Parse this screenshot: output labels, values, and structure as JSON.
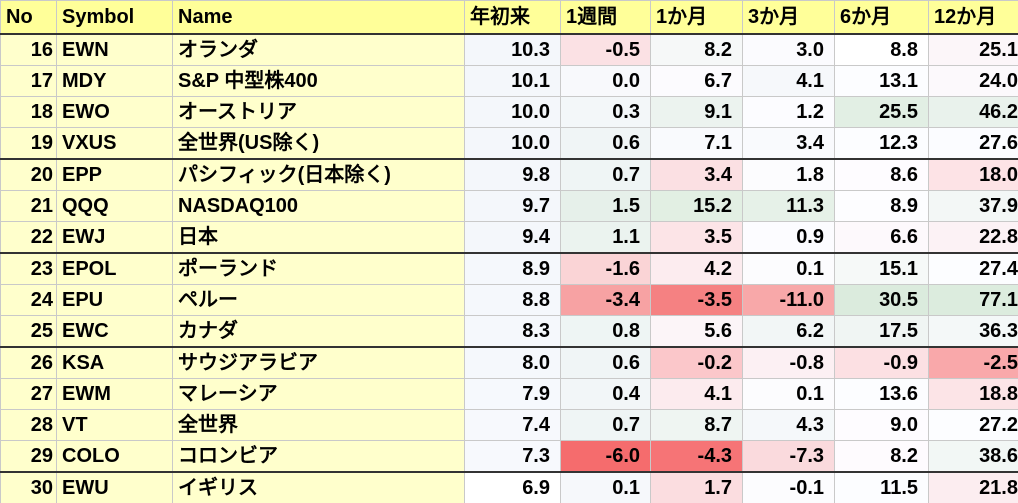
{
  "chart_data": {
    "type": "table",
    "columns": [
      "No",
      "Symbol",
      "Name",
      "年初来",
      "1週間",
      "1か月",
      "3か月",
      "6か月",
      "12か月"
    ],
    "rows": [
      {
        "no": "16",
        "symbol": "EWN",
        "name": "オランダ",
        "values": [
          "10.3",
          "-0.5",
          "8.2",
          "3.0",
          "8.8",
          "25.1"
        ],
        "colors": [
          "#f4f7fb",
          "#fbe1e4",
          "#f6f8f8",
          "#fbfbfe",
          "#ffffff",
          "#fcf6f9"
        ]
      },
      {
        "no": "17",
        "symbol": "MDY",
        "name": "S&P 中型株400",
        "values": [
          "10.1",
          "0.0",
          "6.7",
          "4.1",
          "13.1",
          "24.0"
        ],
        "colors": [
          "#f4f7fb",
          "#f8f9fc",
          "#fcfbfe",
          "#f6f8fb",
          "#fcfdff",
          "#fcf9fc"
        ]
      },
      {
        "no": "18",
        "symbol": "EWO",
        "name": "オーストリア",
        "values": [
          "10.0",
          "0.3",
          "9.1",
          "1.2",
          "25.5",
          "46.2"
        ],
        "colors": [
          "#f4f7fb",
          "#f3f7f9",
          "#ecf3ef",
          "#fcfcff",
          "#e2efe4",
          "#e9f2ec"
        ]
      },
      {
        "no": "19",
        "symbol": "VXUS",
        "name": "全世界(US除く)",
        "values": [
          "10.0",
          "0.6",
          "7.1",
          "3.4",
          "12.3",
          "27.6"
        ],
        "colors": [
          "#f4f7fb",
          "#f0f5f6",
          "#f9fafd",
          "#f9fafd",
          "#fcfdff",
          "#fbfcff"
        ]
      },
      {
        "no": "20",
        "symbol": "EPP",
        "name": "パシフィック(日本除く)",
        "values": [
          "9.8",
          "0.7",
          "3.4",
          "1.8",
          "8.6",
          "18.0"
        ],
        "colors": [
          "#f4f7fb",
          "#eff5f5",
          "#fbe0e3",
          "#fcfcfe",
          "#fefcff",
          "#fde3e6"
        ]
      },
      {
        "no": "21",
        "symbol": "QQQ",
        "name": "NASDAQ100",
        "values": [
          "9.7",
          "1.5",
          "15.2",
          "11.3",
          "8.9",
          "37.9"
        ],
        "colors": [
          "#f4f7fb",
          "#e6f0ea",
          "#e2efe3",
          "#e6f1e8",
          "#fdfdff",
          "#f3f7f6"
        ]
      },
      {
        "no": "22",
        "symbol": "EWJ",
        "name": "日本",
        "values": [
          "9.4",
          "1.1",
          "3.5",
          "0.9",
          "6.6",
          "22.8"
        ],
        "colors": [
          "#f4f7fb",
          "#ebf3ef",
          "#fce4e7",
          "#fcfcff",
          "#fdf9fc",
          "#fcf2f5"
        ]
      },
      {
        "no": "23",
        "symbol": "EPOL",
        "name": "ポーランド",
        "values": [
          "8.9",
          "-1.6",
          "4.2",
          "0.1",
          "15.1",
          "27.4"
        ],
        "colors": [
          "#f5f8fc",
          "#fad4d6",
          "#fcecef",
          "#fcfcfe",
          "#f6f9f8",
          "#fcfdff"
        ]
      },
      {
        "no": "24",
        "symbol": "EPU",
        "name": "ペルー",
        "values": [
          "8.8",
          "-3.4",
          "-3.5",
          "-11.0",
          "30.5",
          "77.1"
        ],
        "colors": [
          "#f5f8fc",
          "#f7a2a3",
          "#f58182",
          "#f8a8a9",
          "#dbebdd",
          "#dcecde"
        ]
      },
      {
        "no": "25",
        "symbol": "EWC",
        "name": "カナダ",
        "values": [
          "8.3",
          "0.8",
          "5.6",
          "6.2",
          "17.5",
          "36.3"
        ],
        "colors": [
          "#f5f8fc",
          "#eef5f4",
          "#fcf5f8",
          "#f2f6f6",
          "#f0f5f3",
          "#f4f8f8"
        ]
      },
      {
        "no": "26",
        "symbol": "KSA",
        "name": "サウジアラビア",
        "values": [
          "8.0",
          "0.6",
          "-0.2",
          "-0.8",
          "-0.9",
          "-2.5"
        ],
        "colors": [
          "#f5f8fc",
          "#f0f5f6",
          "#fbc7ca",
          "#fcf0f3",
          "#fce0e3",
          "#f9a8aa"
        ]
      },
      {
        "no": "27",
        "symbol": "EWM",
        "name": "マレーシア",
        "values": [
          "7.9",
          "0.4",
          "4.1",
          "0.1",
          "13.6",
          "18.8"
        ],
        "colors": [
          "#f6f9fd",
          "#f2f6f8",
          "#fcebee",
          "#fcfcfe",
          "#fcfdff",
          "#fce4e7"
        ]
      },
      {
        "no": "28",
        "symbol": "VT",
        "name": "全世界",
        "values": [
          "7.4",
          "0.7",
          "8.7",
          "4.3",
          "9.0",
          "27.2"
        ],
        "colors": [
          "#f7f9fd",
          "#eff5f5",
          "#eff5f2",
          "#f5f8fa",
          "#fefcff",
          "#fcfdff"
        ]
      },
      {
        "no": "29",
        "symbol": "COLO",
        "name": "コロンビア",
        "values": [
          "7.3",
          "-6.0",
          "-4.3",
          "-7.3",
          "8.2",
          "38.6"
        ],
        "colors": [
          "#f7f9fd",
          "#f56c6d",
          "#f67476",
          "#fadadd",
          "#fefbfe",
          "#f2f7f5"
        ]
      },
      {
        "no": "30",
        "symbol": "EWU",
        "name": "イギリス",
        "values": [
          "6.9",
          "0.1",
          "1.7",
          "-0.1",
          "11.5",
          "21.8"
        ],
        "colors": [
          "#ffffff",
          "#f6f8fb",
          "#fbdde0",
          "#fcfcfe",
          "#fcfdff",
          "#fcedf0"
        ]
      }
    ]
  },
  "colors": {
    "header_bg": "#ffff99",
    "label_bg": "#ffffcc",
    "positive_green": "#dbebdd",
    "negative_red": "#f56c6d"
  }
}
